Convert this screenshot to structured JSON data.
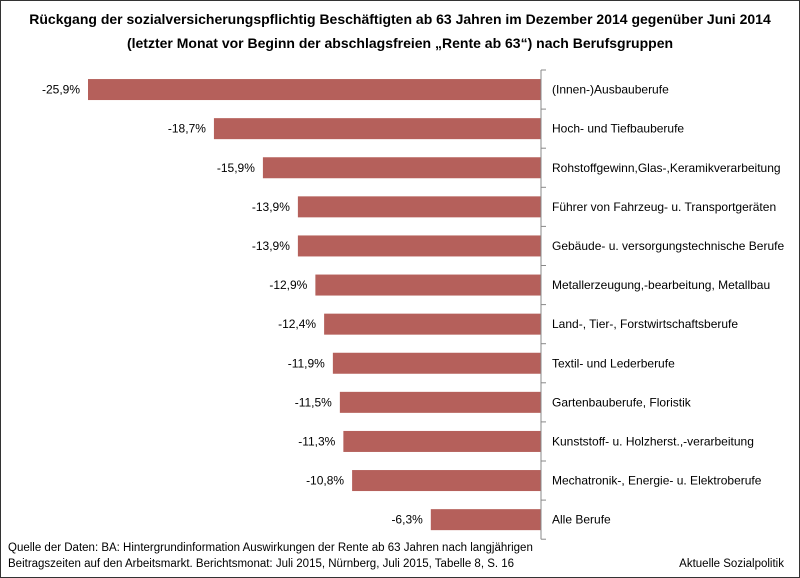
{
  "title": {
    "line1": "Rückgang der sozialversicherungspflichtig Beschäftigten ab 63 Jahren im Dezember 2014 gegenüber Juni 2014",
    "line2": "(letzter Monat vor Beginn der abschlagsfreien „Rente ab 63“) nach Berufsgruppen"
  },
  "footer": {
    "source_line1": "Quelle der Daten: BA: Hintergrundinformation Auswirkungen der Rente ab 63 Jahren nach langjährigen",
    "source_line2": "Beitragszeiten auf den Arbeitsmarkt. Berichtsmonat: Juli 2015, Nürnberg, Juli 2015, Tabelle 8, S. 16",
    "brand": "Aktuelle Sozialpolitik"
  },
  "colors": {
    "bar": "#b5605b",
    "axis": "#888888"
  },
  "chart_data": {
    "type": "bar",
    "orientation": "horizontal",
    "title": "Rückgang der sozialversicherungspflichtig Beschäftigten ab 63 Jahren im Dezember 2014 gegenüber Juni 2014",
    "xlabel": "",
    "ylabel": "",
    "xlim": [
      -25.9,
      0
    ],
    "grid": false,
    "legend": "none",
    "categories": [
      "(Innen-)Ausbauberufe",
      "Hoch- und Tiefbauberufe",
      "Rohstoffgewinn,Glas-,Keramikverarbeitung",
      "Führer von Fahrzeug- u. Transportgeräten",
      "Gebäude- u. versorgungstechnische Berufe",
      "Metallerzeugung,-bearbeitung, Metallbau",
      "Land-, Tier-, Forstwirtschaftsberufe",
      "Textil- und Lederberufe",
      "Gartenbauberufe, Floristik",
      "Kunststoff- u. Holzherst.,-verarbeitung",
      "Mechatronik-, Energie- u. Elektroberufe",
      "Alle Berufe"
    ],
    "values": [
      -25.9,
      -18.7,
      -15.9,
      -13.9,
      -13.9,
      -12.9,
      -12.4,
      -11.9,
      -11.5,
      -11.3,
      -10.8,
      -6.3
    ],
    "value_labels": [
      "-25,9%",
      "-18,7%",
      "-15,9%",
      "-13,9%",
      "-13,9%",
      "-12,9%",
      "-12,4%",
      "-11,9%",
      "-11,5%",
      "-11,3%",
      "-10,8%",
      "-6,3%"
    ]
  }
}
